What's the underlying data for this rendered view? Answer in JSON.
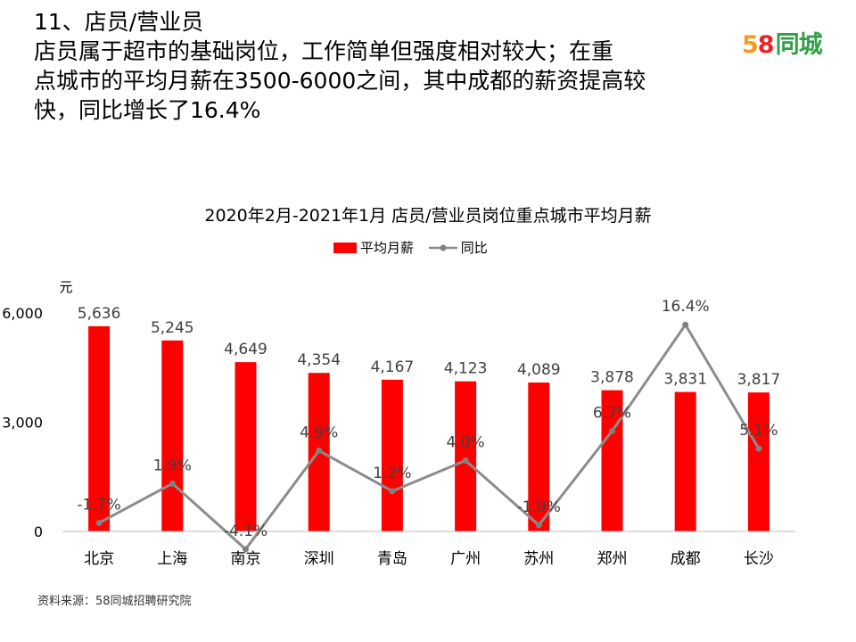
{
  "heading": {
    "line1": "11、店员/营业员",
    "line2": "店员属于超市的基础岗位，工作简单但强度相对较大；在重",
    "line3": "点城市的平均月薪在3500-6000之间，其中成都的薪资提高较",
    "line4": "快，同比增长了16.4%"
  },
  "logo": {
    "digits5": "5",
    "digits8": "8",
    "text": "同城"
  },
  "colors": {
    "bar": "#ff0000",
    "line": "#8c8c8c",
    "marker": "#808080"
  },
  "source": "资料来源：58同城招聘研究院",
  "chart_data": {
    "type": "bar",
    "title": "2020年2月-2021年1月  店员/营业员岗位重点城市平均月薪",
    "categories": [
      "北京",
      "上海",
      "南京",
      "深圳",
      "青岛",
      "广州",
      "苏州",
      "郑州",
      "成都",
      "长沙"
    ],
    "series": [
      {
        "name": "平均月薪",
        "type": "bar",
        "axis": "left",
        "values": [
          5636,
          5245,
          4649,
          4354,
          4167,
          4123,
          4089,
          3878,
          3831,
          3817
        ],
        "labels": [
          "5,636",
          "5,245",
          "4,649",
          "4,354",
          "4,167",
          "4,123",
          "4,089",
          "3,878",
          "3,831",
          "3,817"
        ]
      },
      {
        "name": "同比",
        "type": "line",
        "axis": "right",
        "values": [
          -1.7,
          1.9,
          -4.1,
          4.9,
          1.2,
          4.0,
          -1.9,
          6.7,
          16.4,
          5.1
        ],
        "labels": [
          "-1.7%",
          "1.9%",
          "-4.1%",
          "4.9%",
          "1.2%",
          "4.0%",
          "-1.9%",
          "6.7%",
          "16.4%",
          "5.1%"
        ]
      }
    ],
    "yunit": "元",
    "ylim": [
      0,
      6000
    ],
    "yticks": [
      0,
      3000,
      6000
    ],
    "ytick_labels": [
      "0",
      "3,000",
      "6,000"
    ],
    "y2lim": [
      -5,
      20
    ],
    "grid": false,
    "legend": "top-center"
  }
}
